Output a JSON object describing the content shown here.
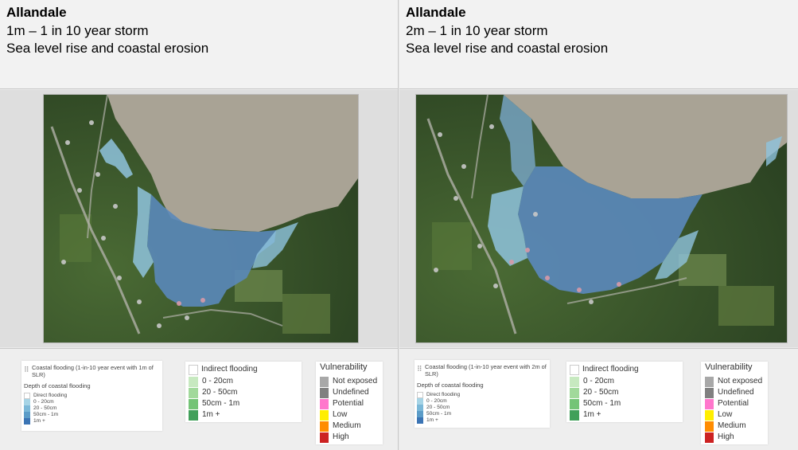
{
  "panels": [
    {
      "id": "left",
      "title": "Allandale",
      "scenario": "1m – 1 in 10 year storm",
      "subtitle": "Sea level rise and coastal erosion",
      "legend_title": "Coastal flooding (1-in-10 year event with 1m of SLR)"
    },
    {
      "id": "right",
      "title": "Allandale",
      "scenario": "2m – 1 in 10 year storm",
      "subtitle": "Sea level rise and coastal erosion",
      "legend_title": "Coastal flooding (1-in-10 year event with 2m of SLR)"
    }
  ],
  "depth_legend": {
    "heading": "Depth of coastal flooding",
    "items": [
      {
        "label": "Direct flooding",
        "color": "#ffffff"
      },
      {
        "label": "0 - 20cm",
        "color": "#a6d4e6"
      },
      {
        "label": "20 - 50cm",
        "color": "#7bb8d8"
      },
      {
        "label": "50cm - 1m",
        "color": "#5b9cc8"
      },
      {
        "label": "1m +",
        "color": "#3b74b4"
      }
    ]
  },
  "indirect_legend": {
    "heading": "Indirect flooding",
    "items": [
      {
        "label": "0 - 20cm",
        "color": "#c7e9c0"
      },
      {
        "label": "20 - 50cm",
        "color": "#a1d99b"
      },
      {
        "label": "50cm - 1m",
        "color": "#74c476"
      },
      {
        "label": "1m +",
        "color": "#41a05a"
      }
    ]
  },
  "vulnerability_legend": {
    "heading": "Vulnerability",
    "items": [
      {
        "label": "Not exposed",
        "color": "#a8a8a8"
      },
      {
        "label": "Undefined",
        "color": "#808080"
      },
      {
        "label": "Potential",
        "color": "#ff77cc"
      },
      {
        "label": "Low",
        "color": "#ffee00"
      },
      {
        "label": "Medium",
        "color": "#ff8c00"
      },
      {
        "label": "High",
        "color": "#cc2222"
      }
    ]
  },
  "colors": {
    "mudflat": "#a9a395",
    "forest": "#34502a",
    "flood_shallow": "#8fc3dd",
    "flood_deep": "#5a88ba",
    "road": "#b0b0a8"
  }
}
